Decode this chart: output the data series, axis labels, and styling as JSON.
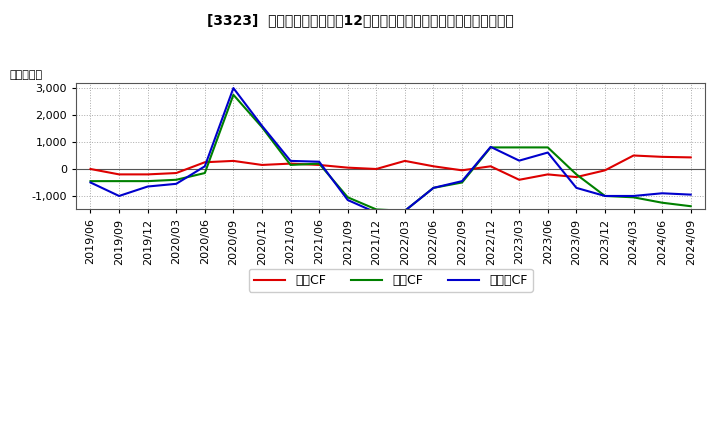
{
  "title": "[3323]  キャッシュフローの12か月移動合計の対前年同期増減額の推移",
  "ylabel": "（百万円）",
  "background_color": "#ffffff",
  "plot_bg_color": "#ffffff",
  "grid_color": "#aaaaaa",
  "ylim": [
    -1500,
    3200
  ],
  "yticks": [
    -1000,
    0,
    1000,
    2000,
    3000
  ],
  "dates": [
    "2019/06",
    "2019/09",
    "2019/12",
    "2020/03",
    "2020/06",
    "2020/09",
    "2020/12",
    "2021/03",
    "2021/06",
    "2021/09",
    "2021/12",
    "2022/03",
    "2022/06",
    "2022/09",
    "2022/12",
    "2023/03",
    "2023/06",
    "2023/09",
    "2023/12",
    "2024/03",
    "2024/06",
    "2024/09"
  ],
  "operating_cf": [
    0,
    -200,
    -200,
    -150,
    250,
    300,
    150,
    200,
    150,
    50,
    0,
    300,
    100,
    -50,
    100,
    -400,
    -200,
    -300,
    -50,
    500,
    450,
    430
  ],
  "investing_cf": [
    -450,
    -450,
    -450,
    -400,
    -150,
    2750,
    1550,
    150,
    200,
    -1050,
    -1500,
    -1550,
    -700,
    -500,
    800,
    800,
    800,
    -200,
    -1000,
    -1050,
    -1250,
    -1380
  ],
  "free_cf": [
    -500,
    -1000,
    -650,
    -550,
    100,
    3000,
    1600,
    300,
    270,
    -1150,
    -1620,
    -1550,
    -700,
    -450,
    820,
    310,
    610,
    -700,
    -1000,
    -1000,
    -900,
    -950
  ],
  "operating_color": "#dd0000",
  "investing_color": "#008000",
  "free_color": "#0000cc",
  "legend_labels": [
    "営業CF",
    "投資CF",
    "フリーCF"
  ]
}
